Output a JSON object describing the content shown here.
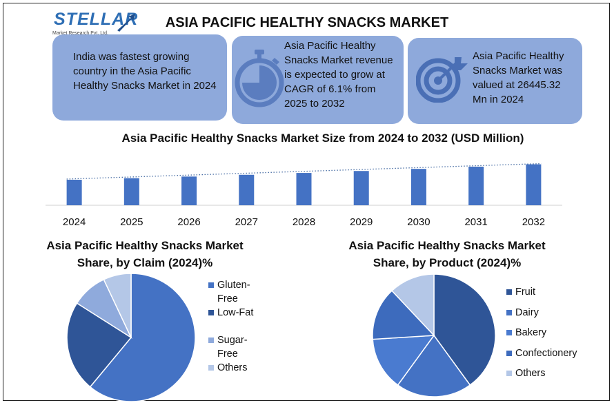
{
  "logo": {
    "name": "STELLAR",
    "tagline": "Market Research Pvt. Ltd."
  },
  "title": "ASIA PACIFIC HEALTHY SNACKS MARKET",
  "cards": [
    {
      "text": "India was fastest growing country in the Asia Pacific Healthy Snacks Market in 2024",
      "icon": "none"
    },
    {
      "text": "Asia Pacific Healthy Snacks Market revenue is expected to grow at CAGR of 6.1% from 2025 to 2032",
      "icon": "stopwatch-icon"
    },
    {
      "text": "Asia Pacific Healthy Snacks Market was valued at 26445.32 Mn in 2024",
      "icon": "target-icon"
    }
  ],
  "colors": {
    "card": "#8ea9db",
    "bar": "#4472c4",
    "logo": "#2f6fb5"
  },
  "chart_data": [
    {
      "type": "bar",
      "title": "Asia Pacific Healthy Snacks Market Size from 2024 to 2032 (USD Million)",
      "categories": [
        "2024",
        "2025",
        "2026",
        "2027",
        "2028",
        "2029",
        "2030",
        "2031",
        "2032"
      ],
      "values": [
        26445.32,
        28058.5,
        29770.1,
        31586.1,
        33512.8,
        35557.1,
        37726.1,
        40027.4,
        42469.1
      ],
      "trendline": "dotted linear",
      "ylim": [
        0,
        60000
      ],
      "grid": false
    },
    {
      "type": "pie",
      "title": "Asia Pacific Healthy Snacks Market Share, by Claim (2024)%",
      "labels": [
        "Gluten-Free",
        "Low-Fat",
        "Sugar-Free",
        "Others"
      ],
      "legend_lines": [
        [
          "Gluten-",
          "Free"
        ],
        [
          "Low-Fat"
        ],
        [
          "Sugar-",
          "Free"
        ],
        [
          "Others"
        ]
      ],
      "values": [
        61,
        23,
        9,
        7
      ],
      "colors": [
        "#4472c4",
        "#2f5597",
        "#8faadc",
        "#b4c7e7"
      ],
      "legend": "right"
    },
    {
      "type": "pie",
      "title": "Asia Pacific Healthy Snacks Market Share, by Product (2024)%",
      "labels": [
        "Fruit",
        "Dairy",
        "Bakery",
        "Confectionery",
        "Others"
      ],
      "values": [
        40,
        20,
        14,
        14,
        12
      ],
      "colors": [
        "#2f5597",
        "#4472c4",
        "#4a7bd0",
        "#3d6bbd",
        "#b4c7e7"
      ],
      "legend": "right"
    }
  ]
}
